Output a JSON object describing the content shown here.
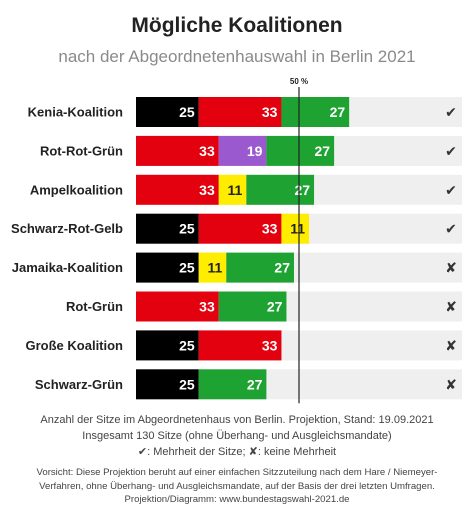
{
  "title": "Mögliche Koalitionen",
  "subtitle": "nach der Abgeordnetenhauswahl in Berlin 2021",
  "footer": {
    "line1": "Anzahl der Sitze im Abgeordnetenhaus von Berlin. Projektion, Stand: 19.09.2021",
    "line2": "Insgesamt 130 Sitze (ohne Überhang- und Ausgleichsmandate)",
    "line3": "✔: Mehrheit der Sitze; ✘: keine Mehrheit"
  },
  "note": {
    "line1": "Vorsicht: Diese Projektion beruht auf einer einfachen Sitzzuteilung nach dem Hare / Niemeyer-",
    "line2": "Verfahren, ohne Überhang- und Ausgleichsmandate, auf der Basis der drei letzten Umfragen.",
    "line3": "Projektion/Diagramm: www.bundestagswahl-2021.de"
  },
  "chart_data": {
    "type": "bar",
    "orientation": "horizontal",
    "stacked": true,
    "total_seats": 130,
    "reference_line": {
      "value": 65,
      "label": "50 %"
    },
    "colors": {
      "CDU": "#000000",
      "SPD": "#e3000f",
      "Linke": "#9b59d0",
      "Gruene": "#1ea333",
      "FDP": "#ffed00",
      "background": "#efefef"
    },
    "mark_labels": {
      "yes": "✔",
      "no": "✘"
    },
    "categories": [
      "Kenia-Koalition",
      "Rot-Rot-Grün",
      "Ampelkoalition",
      "Schwarz-Rot-Gelb",
      "Jamaika-Koalition",
      "Rot-Grün",
      "Große Koalition",
      "Schwarz-Grün"
    ],
    "rows": [
      {
        "label": "Kenia-Koalition",
        "majority": true,
        "segments": [
          {
            "party": "CDU",
            "value": 25
          },
          {
            "party": "SPD",
            "value": 33
          },
          {
            "party": "Gruene",
            "value": 27
          }
        ]
      },
      {
        "label": "Rot-Rot-Grün",
        "majority": true,
        "segments": [
          {
            "party": "SPD",
            "value": 33
          },
          {
            "party": "Linke",
            "value": 19
          },
          {
            "party": "Gruene",
            "value": 27
          }
        ]
      },
      {
        "label": "Ampelkoalition",
        "majority": true,
        "segments": [
          {
            "party": "SPD",
            "value": 33
          },
          {
            "party": "FDP",
            "value": 11
          },
          {
            "party": "Gruene",
            "value": 27
          }
        ]
      },
      {
        "label": "Schwarz-Rot-Gelb",
        "majority": true,
        "segments": [
          {
            "party": "CDU",
            "value": 25
          },
          {
            "party": "SPD",
            "value": 33
          },
          {
            "party": "FDP",
            "value": 11
          }
        ]
      },
      {
        "label": "Jamaika-Koalition",
        "majority": false,
        "segments": [
          {
            "party": "CDU",
            "value": 25
          },
          {
            "party": "FDP",
            "value": 11
          },
          {
            "party": "Gruene",
            "value": 27
          }
        ]
      },
      {
        "label": "Rot-Grün",
        "majority": false,
        "segments": [
          {
            "party": "SPD",
            "value": 33
          },
          {
            "party": "Gruene",
            "value": 27
          }
        ]
      },
      {
        "label": "Große Koalition",
        "majority": false,
        "segments": [
          {
            "party": "CDU",
            "value": 25
          },
          {
            "party": "SPD",
            "value": 33
          }
        ]
      },
      {
        "label": "Schwarz-Grün",
        "majority": false,
        "segments": [
          {
            "party": "CDU",
            "value": 25
          },
          {
            "party": "Gruene",
            "value": 27
          }
        ]
      }
    ]
  }
}
